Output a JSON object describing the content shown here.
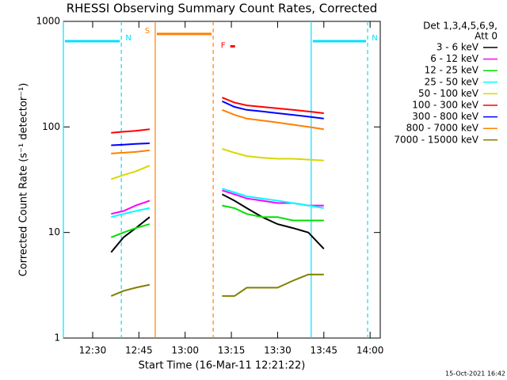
{
  "chart_data": {
    "type": "line",
    "title": "RHESSI Observing Summary Count Rates, Corrected",
    "x_label": "Start Time (16-Mar-11 12:21:22)",
    "y_label": "Corrected Count Rate (s⁻¹ detector⁻¹)",
    "legend_title": [
      "Det 1,3,4,5,6,9,",
      "Att 0"
    ],
    "footer": "15-Oct-2021 16:42",
    "log_y": true,
    "legend": "right",
    "xlim": [
      740.5,
      843.3
    ],
    "ylim": [
      1,
      1000
    ],
    "xticks": [
      {
        "value": 750,
        "label": "12:30"
      },
      {
        "value": 765,
        "label": "12:45"
      },
      {
        "value": 780,
        "label": "13:00"
      },
      {
        "value": 795,
        "label": "13:15"
      },
      {
        "value": 810,
        "label": "13:30"
      },
      {
        "value": 825,
        "label": "13:45"
      },
      {
        "value": 840,
        "label": "14:00"
      }
    ],
    "yticks": [
      1,
      10,
      100,
      1000
    ],
    "x": [
      756,
      760,
      764,
      768.5,
      780,
      792,
      796,
      800,
      805,
      810,
      815,
      820,
      825
    ],
    "series": [
      {
        "name": "3 - 6 keV",
        "color": "#000000",
        "values": [
          6.5,
          9,
          11,
          14,
          null,
          23,
          20,
          17,
          14,
          12,
          11,
          10,
          7
        ]
      },
      {
        "name": "6 - 12 keV",
        "color": "#ff00ff",
        "values": [
          15,
          16,
          18,
          20,
          null,
          25,
          23,
          21,
          20,
          19,
          19,
          18,
          18
        ]
      },
      {
        "name": "12 - 25 keV",
        "color": "#00e000",
        "values": [
          9,
          10,
          11,
          12,
          null,
          18,
          17,
          15,
          14,
          14,
          13,
          13,
          13
        ]
      },
      {
        "name": "25 - 50 keV",
        "color": "#00ffff",
        "values": [
          14,
          15,
          16,
          17,
          null,
          26,
          24,
          22,
          21,
          20,
          19,
          18,
          17
        ]
      },
      {
        "name": "50 - 100 keV",
        "color": "#d8d800",
        "values": [
          32,
          35,
          38,
          43,
          null,
          62,
          57,
          53,
          51,
          50,
          50,
          49,
          48
        ]
      },
      {
        "name": "100 - 300 keV",
        "color": "#ff0000",
        "values": [
          88,
          90,
          92,
          95,
          null,
          190,
          170,
          160,
          155,
          150,
          145,
          140,
          135
        ]
      },
      {
        "name": "300 - 800 keV",
        "color": "#0000ff",
        "values": [
          67,
          68,
          69,
          70,
          null,
          175,
          155,
          145,
          140,
          135,
          130,
          125,
          120
        ]
      },
      {
        "name": "800 - 7000 keV",
        "color": "#ff8000",
        "values": [
          56,
          57,
          58,
          60,
          null,
          145,
          130,
          120,
          115,
          110,
          105,
          100,
          95
        ]
      },
      {
        "name": "7000 - 15000 keV",
        "color": "#808000",
        "values": [
          2.5,
          2.8,
          3,
          3.2,
          null,
          2.5,
          2.5,
          3,
          3,
          3,
          3.5,
          4,
          4
        ]
      }
    ],
    "intervals": [
      {
        "label": "N",
        "color": "#00e0ff",
        "x": [
          740.5,
          759.3
        ],
        "y": 650
      },
      {
        "label": "S",
        "color": "#ff8000",
        "x": [
          770.3,
          789.1
        ],
        "y": 760
      },
      {
        "label": "N",
        "color": "#00e0ff",
        "x": [
          820.9,
          839.2
        ],
        "y": 650
      }
    ],
    "flare": {
      "label": "F",
      "color": "#ff0000",
      "x": 789.5,
      "y": 580
    }
  }
}
